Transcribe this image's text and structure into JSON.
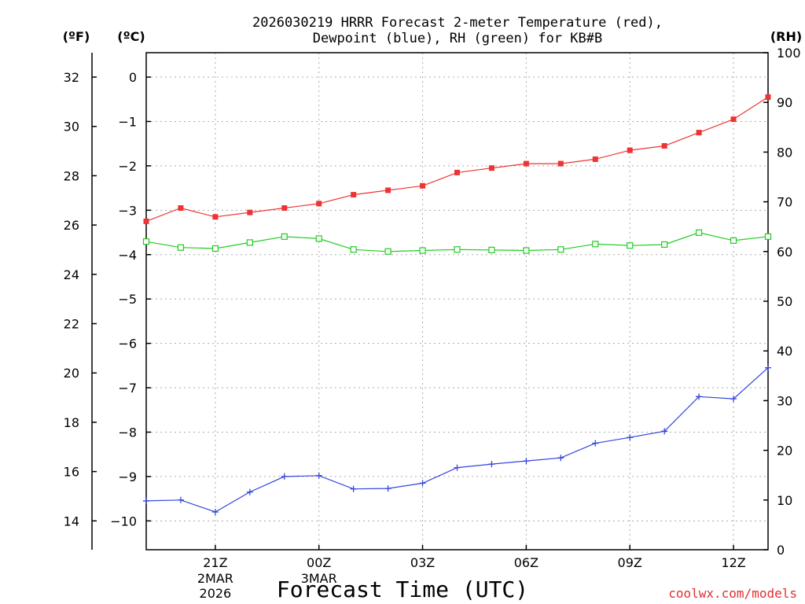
{
  "chart_data": {
    "type": "line",
    "title_line1": "2026030219 HRRR Forecast 2-meter Temperature (red),",
    "title_line2": "Dewpoint (blue), RH (green) for KB#B",
    "xlabel": "Forecast Time (UTC)",
    "credit": "coolwx.com/models",
    "unit_f": "(ºF)",
    "unit_c": "(ºC)",
    "unit_rh": "(RH)",
    "hours": [
      19,
      20,
      21,
      22,
      23,
      24,
      25,
      26,
      27,
      28,
      29,
      30,
      31,
      32,
      33,
      34,
      35,
      36,
      37
    ],
    "xlim": [
      19,
      37
    ],
    "ylim_c": [
      -10.65,
      0.55
    ],
    "ylim_rh": [
      0,
      100
    ],
    "x_ticks": [
      {
        "hour": 21,
        "label": "21Z"
      },
      {
        "hour": 24,
        "label": "00Z"
      },
      {
        "hour": 27,
        "label": "03Z"
      },
      {
        "hour": 30,
        "label": "06Z"
      },
      {
        "hour": 33,
        "label": "09Z"
      },
      {
        "hour": 36,
        "label": "12Z"
      }
    ],
    "date_labels": [
      {
        "hour": 21,
        "lines": [
          "2MAR",
          "2026"
        ]
      },
      {
        "hour": 24,
        "lines": [
          "3MAR"
        ]
      }
    ],
    "c_ticks": [
      {
        "value": 0,
        "label": "0"
      },
      {
        "value": -1,
        "label": "−1"
      },
      {
        "value": -2,
        "label": "−2"
      },
      {
        "value": -3,
        "label": "−3"
      },
      {
        "value": -4,
        "label": "−4"
      },
      {
        "value": -5,
        "label": "−5"
      },
      {
        "value": -6,
        "label": "−6"
      },
      {
        "value": -7,
        "label": "−7"
      },
      {
        "value": -8,
        "label": "−8"
      },
      {
        "value": -9,
        "label": "−9"
      },
      {
        "value": -10,
        "label": "−10"
      }
    ],
    "f_ticks": [
      {
        "value": 32,
        "label": "32"
      },
      {
        "value": 30,
        "label": "30"
      },
      {
        "value": 28,
        "label": "28"
      },
      {
        "value": 26,
        "label": "26"
      },
      {
        "value": 24,
        "label": "24"
      },
      {
        "value": 22,
        "label": "22"
      },
      {
        "value": 20,
        "label": "20"
      },
      {
        "value": 18,
        "label": "18"
      },
      {
        "value": 16,
        "label": "16"
      },
      {
        "value": 14,
        "label": "14"
      }
    ],
    "rh_ticks": [
      {
        "value": 100,
        "label": "100"
      },
      {
        "value": 90,
        "label": "90"
      },
      {
        "value": 80,
        "label": "80"
      },
      {
        "value": 70,
        "label": "70"
      },
      {
        "value": 60,
        "label": "60"
      },
      {
        "value": 50,
        "label": "50"
      },
      {
        "value": 40,
        "label": "40"
      },
      {
        "value": 30,
        "label": "30"
      },
      {
        "value": 20,
        "label": "20"
      },
      {
        "value": 10,
        "label": "10"
      },
      {
        "value": 0,
        "label": "0"
      }
    ],
    "series": [
      {
        "name": "Temperature",
        "unit": "C",
        "color": "#ee3333",
        "marker": "filled-square",
        "values": [
          -3.25,
          -2.95,
          -3.15,
          -3.05,
          -2.95,
          -2.85,
          -2.65,
          -2.55,
          -2.45,
          -2.15,
          -2.05,
          -1.95,
          -1.95,
          -1.85,
          -1.65,
          -1.55,
          -1.25,
          -0.95,
          -0.45
        ]
      },
      {
        "name": "Dewpoint",
        "unit": "C",
        "color": "#3344dd",
        "marker": "plus",
        "values": [
          -9.55,
          -9.53,
          -9.8,
          -9.35,
          -9.0,
          -8.98,
          -9.28,
          -9.27,
          -9.15,
          -8.8,
          -8.72,
          -8.65,
          -8.58,
          -8.25,
          -8.12,
          -7.98,
          -7.2,
          -7.25,
          -6.55
        ]
      },
      {
        "name": "RH",
        "unit": "%",
        "color": "#22cc22",
        "marker": "open-square",
        "values": [
          62,
          60.8,
          60.6,
          61.8,
          63,
          62.6,
          60.4,
          60,
          60.2,
          60.4,
          60.3,
          60.2,
          60.4,
          61.5,
          61.2,
          61.4,
          63.8,
          62.2,
          63
        ]
      }
    ]
  }
}
